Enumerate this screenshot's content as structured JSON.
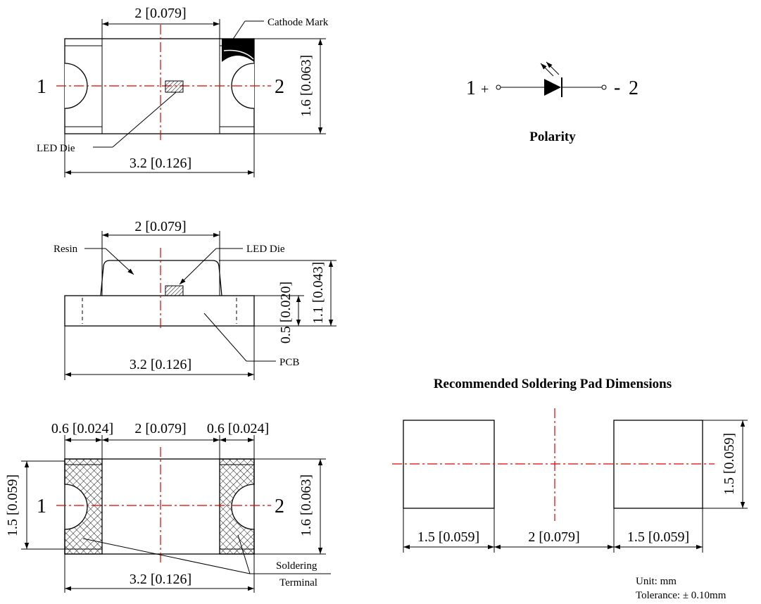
{
  "top_view": {
    "width_label": "2 [0.079]",
    "length_label": "3.2 [0.126]",
    "height_label": "1.6 [0.063]",
    "cathode_label": "Cathode Mark",
    "die_label": "LED Die",
    "pin_left": "1",
    "pin_right": "2"
  },
  "polarity": {
    "pin_left": "1",
    "plus": "+",
    "minus": "-",
    "pin_right": "2",
    "title": "Polarity"
  },
  "side_view": {
    "width_label": "2 [0.079]",
    "length_label": "3.2 [0.126]",
    "pcb_height_label": "0.5 [0.020]",
    "total_height_label": "1.1 [0.043]",
    "resin_label": "Resin",
    "die_label": "LED Die",
    "pcb_label": "PCB"
  },
  "bottom_view": {
    "pad_left_label": "0.6 [0.024]",
    "gap_label": "2 [0.079]",
    "pad_right_label": "0.6 [0.024]",
    "length_label": "3.2 [0.126]",
    "pad_height_label": "1.5 [0.059]",
    "height_label": "1.6 [0.063]",
    "terminal_label_1": "Soldering",
    "terminal_label_2": "Terminal",
    "pin_left": "1",
    "pin_right": "2"
  },
  "pad_layout": {
    "title": "Recommended Soldering Pad Dimensions",
    "pad_left_label": "1.5 [0.059]",
    "gap_label": "2 [0.079]",
    "pad_right_label": "1.5 [0.059]",
    "pad_height_label": "1.5 [0.059]"
  },
  "notes": {
    "unit": "Unit: mm",
    "tolerance": "Tolerance: ± 0.10mm"
  }
}
